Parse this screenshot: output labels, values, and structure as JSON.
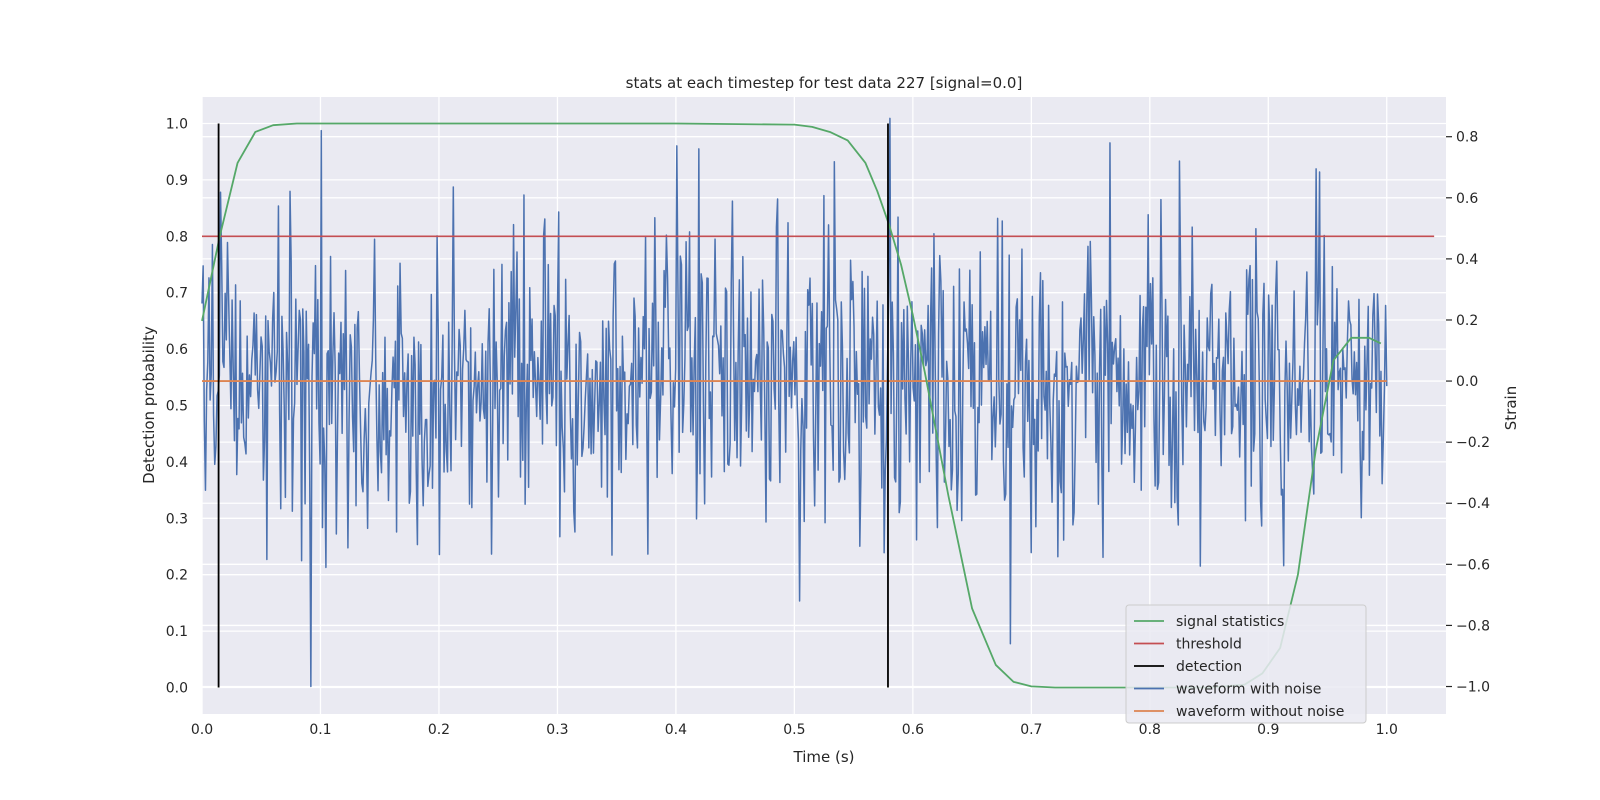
{
  "chart_data": {
    "type": "line",
    "title": "stats at each timestep for test data 227 [signal=0.0]",
    "xlabel": "Time (s)",
    "ylabel": "Detection probability",
    "y2label": "Strain",
    "xlim": [
      0.0,
      1.05
    ],
    "ylim": [
      -0.047,
      1.047
    ],
    "y2lim": [
      -1.09,
      0.93
    ],
    "x_ticks": [
      "0.0",
      "0.1",
      "0.2",
      "0.3",
      "0.4",
      "0.5",
      "0.6",
      "0.7",
      "0.8",
      "0.9",
      "1.0"
    ],
    "y_ticks": [
      "0.0",
      "0.1",
      "0.2",
      "0.3",
      "0.4",
      "0.5",
      "0.6",
      "0.7",
      "0.8",
      "0.9",
      "1.0"
    ],
    "y2_ticks": [
      "−1.0",
      "−0.8",
      "−0.6",
      "−0.4",
      "−0.2",
      "0.0",
      "0.2",
      "0.4",
      "0.6",
      "0.8"
    ],
    "grid": true,
    "legend_position": "lower right",
    "series": [
      {
        "name": "signal statistics",
        "axis": "left",
        "color": "#55a868",
        "x": [
          0.0,
          0.015,
          0.03,
          0.045,
          0.06,
          0.08,
          0.1,
          0.2,
          0.3,
          0.4,
          0.5,
          0.515,
          0.53,
          0.545,
          0.56,
          0.57,
          0.58,
          0.59,
          0.6,
          0.61,
          0.62,
          0.63,
          0.64,
          0.65,
          0.67,
          0.685,
          0.7,
          0.72,
          0.76,
          0.8,
          0.85,
          0.88,
          0.895,
          0.91,
          0.925,
          0.94,
          0.955,
          0.97,
          0.985,
          0.995
        ],
        "y": [
          0.65,
          0.8,
          0.93,
          0.985,
          0.997,
          1.0,
          1.0,
          1.0,
          1.0,
          1.0,
          0.998,
          0.994,
          0.985,
          0.97,
          0.93,
          0.88,
          0.82,
          0.75,
          0.66,
          0.56,
          0.45,
          0.34,
          0.24,
          0.14,
          0.04,
          0.01,
          0.002,
          0.0,
          0.0,
          0.0,
          0.0,
          0.005,
          0.025,
          0.07,
          0.2,
          0.42,
          0.58,
          0.62,
          0.62,
          0.61
        ]
      },
      {
        "name": "threshold",
        "axis": "left",
        "color": "#c44e52",
        "x": [
          0.0,
          1.04
        ],
        "y": [
          0.8,
          0.8
        ]
      },
      {
        "name": "detection",
        "axis": "left",
        "color": "#000000",
        "segments": [
          {
            "x": 0.014,
            "y": [
              0.0,
              1.0
            ]
          },
          {
            "x": 0.579,
            "y": [
              0.0,
              1.0
            ]
          }
        ]
      },
      {
        "name": "waveform with noise",
        "axis": "right",
        "color": "#4c72b0",
        "x_range": [
          0.0,
          1.0
        ],
        "points": 1024,
        "style": "dense noise around 0.0 strain, mostly between -0.6 and 0.8",
        "highlights": [
          {
            "x": 0.092,
            "y": -1.0
          },
          {
            "x": 0.101,
            "y": 0.82
          },
          {
            "x": 0.401,
            "y": 0.77
          },
          {
            "x": 0.419,
            "y": 0.76
          },
          {
            "x": 0.581,
            "y": 0.86
          },
          {
            "x": 0.682,
            "y": -0.86
          },
          {
            "x": 0.766,
            "y": 0.78
          }
        ]
      },
      {
        "name": "waveform without noise",
        "axis": "right",
        "color": "#dd8452",
        "x": [
          0.0,
          1.0
        ],
        "y": [
          0.0,
          0.0
        ]
      }
    ],
    "legend": [
      "signal statistics",
      "threshold",
      "detection",
      "waveform with noise",
      "waveform without noise"
    ]
  }
}
